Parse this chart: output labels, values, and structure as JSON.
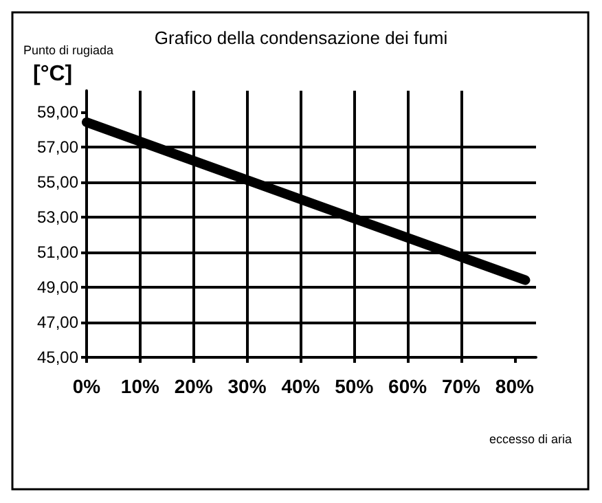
{
  "chart_data": {
    "type": "line",
    "title": "Grafico della condensazione dei fumi",
    "ylabel": "Punto di rugiada",
    "annotations": [
      "[°C]"
    ],
    "xlabel": "eccesso di aria",
    "x": [
      0,
      82
    ],
    "series": [
      {
        "color": "#000000",
        "values": [
          58.4,
          49.4
        ]
      }
    ],
    "xlim": [
      0,
      84
    ],
    "ylim": [
      45,
      60.2
    ],
    "xticks": [
      {
        "value": 0,
        "label": "0%"
      },
      {
        "value": 10,
        "label": "10%"
      },
      {
        "value": 20,
        "label": "20%"
      },
      {
        "value": 30,
        "label": "30%"
      },
      {
        "value": 40,
        "label": "40%"
      },
      {
        "value": 50,
        "label": "50%"
      },
      {
        "value": 60,
        "label": "60%"
      },
      {
        "value": 70,
        "label": "70%"
      },
      {
        "value": 80,
        "label": "80%"
      }
    ],
    "yticks": [
      {
        "value": 45,
        "label": "45,00"
      },
      {
        "value": 47,
        "label": "47,00"
      },
      {
        "value": 49,
        "label": "49,00"
      },
      {
        "value": 51,
        "label": "51,00"
      },
      {
        "value": 53,
        "label": "53,00"
      },
      {
        "value": 55,
        "label": "55,00"
      },
      {
        "value": 57,
        "label": "57,00"
      },
      {
        "value": 59,
        "label": "59,00"
      }
    ],
    "grid": true,
    "line_style": "solid"
  }
}
